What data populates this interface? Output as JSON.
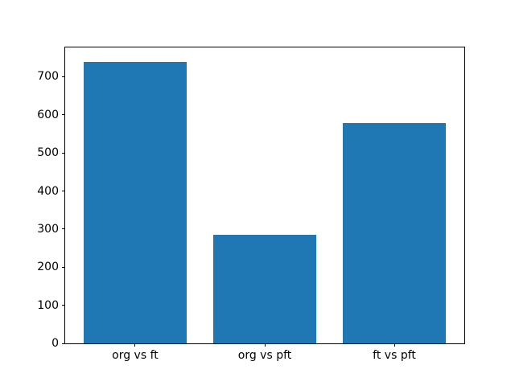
{
  "chart_data": {
    "type": "bar",
    "categories": [
      "org vs ft",
      "org vs pft",
      "ft vs pft"
    ],
    "values": [
      740,
      285,
      578
    ],
    "title": "",
    "xlabel": "",
    "ylabel": "",
    "ylim": [
      0,
      777
    ],
    "yticks": [
      0,
      100,
      200,
      300,
      400,
      500,
      600,
      700
    ],
    "bar_color": "#1f77b4",
    "bar_width_units": 0.8,
    "grid": false,
    "legend": false
  }
}
